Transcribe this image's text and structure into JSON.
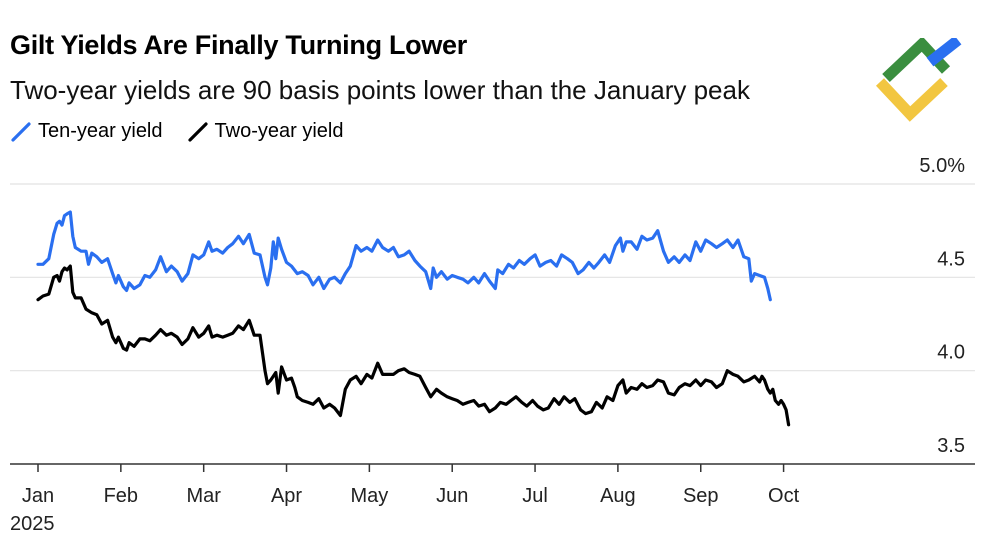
{
  "chart_data": {
    "type": "line",
    "title": "Gilt Yields Are Finally Turning Lower",
    "subtitle": "Two-year yields are 90 basis points lower than the January peak",
    "xlabel": "",
    "ylabel": "",
    "ylim": [
      3.5,
      5.0
    ],
    "grid": true,
    "year_label": "2025",
    "x_ticks": [
      "Jan",
      "Feb",
      "Mar",
      "Apr",
      "May",
      "Jun",
      "Jul",
      "Aug",
      "Sep",
      "Oct"
    ],
    "y_ticks": [
      {
        "value": 5.0,
        "label": "5.0%"
      },
      {
        "value": 4.5,
        "label": "4.5"
      },
      {
        "value": 4.0,
        "label": "4.0"
      },
      {
        "value": 3.5,
        "label": "3.5"
      }
    ],
    "x_domain": [
      0,
      9.85
    ],
    "series": [
      {
        "name": "Ten-year yield",
        "color": "#2a6ff0",
        "points": [
          [
            0.0,
            4.57
          ],
          [
            0.06,
            4.57
          ],
          [
            0.13,
            4.6
          ],
          [
            0.19,
            4.73
          ],
          [
            0.23,
            4.79
          ],
          [
            0.26,
            4.8
          ],
          [
            0.29,
            4.78
          ],
          [
            0.32,
            4.83
          ],
          [
            0.35,
            4.84
          ],
          [
            0.39,
            4.85
          ],
          [
            0.42,
            4.72
          ],
          [
            0.45,
            4.66
          ],
          [
            0.52,
            4.64
          ],
          [
            0.58,
            4.64
          ],
          [
            0.61,
            4.57
          ],
          [
            0.65,
            4.63
          ],
          [
            0.71,
            4.61
          ],
          [
            0.77,
            4.58
          ],
          [
            0.84,
            4.6
          ],
          [
            0.9,
            4.52
          ],
          [
            0.94,
            4.47
          ],
          [
            0.97,
            4.51
          ],
          [
            1.03,
            4.45
          ],
          [
            1.07,
            4.43
          ],
          [
            1.1,
            4.47
          ],
          [
            1.16,
            4.44
          ],
          [
            1.23,
            4.46
          ],
          [
            1.29,
            4.51
          ],
          [
            1.35,
            4.5
          ],
          [
            1.42,
            4.54
          ],
          [
            1.48,
            4.61
          ],
          [
            1.55,
            4.53
          ],
          [
            1.61,
            4.56
          ],
          [
            1.68,
            4.53
          ],
          [
            1.74,
            4.48
          ],
          [
            1.81,
            4.52
          ],
          [
            1.87,
            4.62
          ],
          [
            1.94,
            4.6
          ],
          [
            2.0,
            4.62
          ],
          [
            2.06,
            4.69
          ],
          [
            2.1,
            4.64
          ],
          [
            2.16,
            4.65
          ],
          [
            2.23,
            4.63
          ],
          [
            2.29,
            4.66
          ],
          [
            2.35,
            4.68
          ],
          [
            2.42,
            4.72
          ],
          [
            2.48,
            4.68
          ],
          [
            2.55,
            4.73
          ],
          [
            2.61,
            4.63
          ],
          [
            2.68,
            4.62
          ],
          [
            2.74,
            4.5
          ],
          [
            2.77,
            4.46
          ],
          [
            2.81,
            4.55
          ],
          [
            2.84,
            4.69
          ],
          [
            2.87,
            4.6
          ],
          [
            2.9,
            4.71
          ],
          [
            2.94,
            4.65
          ],
          [
            3.0,
            4.58
          ],
          [
            3.06,
            4.56
          ],
          [
            3.13,
            4.52
          ],
          [
            3.19,
            4.53
          ],
          [
            3.26,
            4.51
          ],
          [
            3.32,
            4.46
          ],
          [
            3.39,
            4.5
          ],
          [
            3.45,
            4.44
          ],
          [
            3.52,
            4.49
          ],
          [
            3.58,
            4.5
          ],
          [
            3.65,
            4.47
          ],
          [
            3.71,
            4.52
          ],
          [
            3.77,
            4.56
          ],
          [
            3.84,
            4.67
          ],
          [
            3.9,
            4.64
          ],
          [
            3.97,
            4.66
          ],
          [
            4.03,
            4.64
          ],
          [
            4.1,
            4.7
          ],
          [
            4.16,
            4.66
          ],
          [
            4.23,
            4.64
          ],
          [
            4.29,
            4.66
          ],
          [
            4.35,
            4.61
          ],
          [
            4.42,
            4.62
          ],
          [
            4.48,
            4.64
          ],
          [
            4.55,
            4.59
          ],
          [
            4.61,
            4.56
          ],
          [
            4.68,
            4.53
          ],
          [
            4.74,
            4.44
          ],
          [
            4.77,
            4.55
          ],
          [
            4.81,
            4.5
          ],
          [
            4.87,
            4.53
          ],
          [
            4.94,
            4.49
          ],
          [
            5.0,
            4.51
          ],
          [
            5.06,
            4.5
          ],
          [
            5.13,
            4.49
          ],
          [
            5.19,
            4.47
          ],
          [
            5.26,
            4.5
          ],
          [
            5.32,
            4.47
          ],
          [
            5.39,
            4.52
          ],
          [
            5.45,
            4.48
          ],
          [
            5.52,
            4.44
          ],
          [
            5.55,
            4.54
          ],
          [
            5.61,
            4.52
          ],
          [
            5.68,
            4.57
          ],
          [
            5.74,
            4.55
          ],
          [
            5.81,
            4.59
          ],
          [
            5.87,
            4.57
          ],
          [
            5.94,
            4.6
          ],
          [
            6.0,
            4.62
          ],
          [
            6.06,
            4.56
          ],
          [
            6.13,
            4.58
          ],
          [
            6.19,
            4.59
          ],
          [
            6.26,
            4.56
          ],
          [
            6.32,
            4.62
          ],
          [
            6.39,
            4.6
          ],
          [
            6.45,
            4.58
          ],
          [
            6.52,
            4.52
          ],
          [
            6.58,
            4.54
          ],
          [
            6.65,
            4.58
          ],
          [
            6.71,
            4.55
          ],
          [
            6.77,
            4.58
          ],
          [
            6.84,
            4.62
          ],
          [
            6.9,
            4.58
          ],
          [
            6.97,
            4.67
          ],
          [
            7.03,
            4.71
          ],
          [
            7.06,
            4.64
          ],
          [
            7.1,
            4.69
          ],
          [
            7.16,
            4.69
          ],
          [
            7.23,
            4.65
          ],
          [
            7.29,
            4.72
          ],
          [
            7.35,
            4.7
          ],
          [
            7.42,
            4.71
          ],
          [
            7.48,
            4.75
          ],
          [
            7.55,
            4.64
          ],
          [
            7.61,
            4.58
          ],
          [
            7.68,
            4.61
          ],
          [
            7.74,
            4.58
          ],
          [
            7.81,
            4.62
          ],
          [
            7.87,
            4.59
          ],
          [
            7.94,
            4.69
          ],
          [
            8.0,
            4.64
          ],
          [
            8.06,
            4.7
          ],
          [
            8.13,
            4.68
          ],
          [
            8.19,
            4.66
          ],
          [
            8.26,
            4.68
          ],
          [
            8.32,
            4.7
          ],
          [
            8.39,
            4.66
          ],
          [
            8.45,
            4.7
          ],
          [
            8.52,
            4.61
          ],
          [
            8.58,
            4.6
          ],
          [
            8.61,
            4.48
          ],
          [
            8.65,
            4.52
          ],
          [
            8.71,
            4.51
          ],
          [
            8.77,
            4.5
          ],
          [
            8.81,
            4.44
          ],
          [
            8.84,
            4.38
          ]
        ]
      },
      {
        "name": "Two-year yield",
        "color": "#000000",
        "points": [
          [
            0.0,
            4.38
          ],
          [
            0.06,
            4.4
          ],
          [
            0.13,
            4.41
          ],
          [
            0.19,
            4.5
          ],
          [
            0.23,
            4.51
          ],
          [
            0.26,
            4.48
          ],
          [
            0.29,
            4.53
          ],
          [
            0.32,
            4.55
          ],
          [
            0.35,
            4.54
          ],
          [
            0.39,
            4.56
          ],
          [
            0.42,
            4.42
          ],
          [
            0.45,
            4.39
          ],
          [
            0.52,
            4.39
          ],
          [
            0.58,
            4.33
          ],
          [
            0.65,
            4.31
          ],
          [
            0.71,
            4.3
          ],
          [
            0.77,
            4.25
          ],
          [
            0.84,
            4.27
          ],
          [
            0.9,
            4.18
          ],
          [
            0.94,
            4.15
          ],
          [
            0.97,
            4.18
          ],
          [
            1.03,
            4.12
          ],
          [
            1.07,
            4.11
          ],
          [
            1.1,
            4.15
          ],
          [
            1.16,
            4.13
          ],
          [
            1.23,
            4.17
          ],
          [
            1.29,
            4.17
          ],
          [
            1.35,
            4.16
          ],
          [
            1.42,
            4.19
          ],
          [
            1.48,
            4.22
          ],
          [
            1.55,
            4.19
          ],
          [
            1.61,
            4.2
          ],
          [
            1.68,
            4.18
          ],
          [
            1.74,
            4.14
          ],
          [
            1.81,
            4.17
          ],
          [
            1.87,
            4.23
          ],
          [
            1.94,
            4.18
          ],
          [
            2.0,
            4.2
          ],
          [
            2.06,
            4.24
          ],
          [
            2.1,
            4.18
          ],
          [
            2.16,
            4.19
          ],
          [
            2.23,
            4.18
          ],
          [
            2.29,
            4.19
          ],
          [
            2.35,
            4.2
          ],
          [
            2.42,
            4.24
          ],
          [
            2.48,
            4.22
          ],
          [
            2.55,
            4.27
          ],
          [
            2.61,
            4.19
          ],
          [
            2.68,
            4.19
          ],
          [
            2.74,
            4.0
          ],
          [
            2.77,
            3.93
          ],
          [
            2.81,
            3.95
          ],
          [
            2.87,
            3.99
          ],
          [
            2.9,
            3.88
          ],
          [
            2.94,
            4.02
          ],
          [
            3.0,
            3.95
          ],
          [
            3.06,
            3.96
          ],
          [
            3.1,
            3.91
          ],
          [
            3.13,
            3.86
          ],
          [
            3.19,
            3.84
          ],
          [
            3.26,
            3.83
          ],
          [
            3.32,
            3.82
          ],
          [
            3.39,
            3.85
          ],
          [
            3.45,
            3.8
          ],
          [
            3.52,
            3.82
          ],
          [
            3.58,
            3.8
          ],
          [
            3.65,
            3.76
          ],
          [
            3.71,
            3.9
          ],
          [
            3.77,
            3.95
          ],
          [
            3.84,
            3.97
          ],
          [
            3.9,
            3.93
          ],
          [
            3.97,
            3.98
          ],
          [
            4.03,
            3.96
          ],
          [
            4.1,
            4.04
          ],
          [
            4.16,
            3.98
          ],
          [
            4.23,
            3.98
          ],
          [
            4.29,
            3.98
          ],
          [
            4.35,
            4.0
          ],
          [
            4.42,
            4.01
          ],
          [
            4.48,
            3.99
          ],
          [
            4.55,
            3.98
          ],
          [
            4.61,
            3.97
          ],
          [
            4.68,
            3.91
          ],
          [
            4.74,
            3.86
          ],
          [
            4.81,
            3.9
          ],
          [
            4.87,
            3.88
          ],
          [
            4.94,
            3.86
          ],
          [
            5.0,
            3.85
          ],
          [
            5.06,
            3.84
          ],
          [
            5.13,
            3.82
          ],
          [
            5.19,
            3.83
          ],
          [
            5.26,
            3.84
          ],
          [
            5.32,
            3.81
          ],
          [
            5.39,
            3.82
          ],
          [
            5.45,
            3.78
          ],
          [
            5.52,
            3.8
          ],
          [
            5.58,
            3.83
          ],
          [
            5.65,
            3.82
          ],
          [
            5.71,
            3.84
          ],
          [
            5.77,
            3.86
          ],
          [
            5.84,
            3.83
          ],
          [
            5.9,
            3.81
          ],
          [
            5.97,
            3.84
          ],
          [
            6.03,
            3.81
          ],
          [
            6.1,
            3.79
          ],
          [
            6.16,
            3.8
          ],
          [
            6.23,
            3.85
          ],
          [
            6.29,
            3.82
          ],
          [
            6.35,
            3.86
          ],
          [
            6.42,
            3.83
          ],
          [
            6.48,
            3.85
          ],
          [
            6.55,
            3.79
          ],
          [
            6.61,
            3.77
          ],
          [
            6.68,
            3.78
          ],
          [
            6.74,
            3.83
          ],
          [
            6.81,
            3.8
          ],
          [
            6.87,
            3.86
          ],
          [
            6.94,
            3.84
          ],
          [
            7.0,
            3.92
          ],
          [
            7.06,
            3.95
          ],
          [
            7.1,
            3.88
          ],
          [
            7.16,
            3.91
          ],
          [
            7.23,
            3.9
          ],
          [
            7.29,
            3.93
          ],
          [
            7.35,
            3.91
          ],
          [
            7.42,
            3.92
          ],
          [
            7.48,
            3.95
          ],
          [
            7.55,
            3.94
          ],
          [
            7.61,
            3.88
          ],
          [
            7.68,
            3.87
          ],
          [
            7.74,
            3.91
          ],
          [
            7.81,
            3.93
          ],
          [
            7.87,
            3.92
          ],
          [
            7.94,
            3.95
          ],
          [
            8.0,
            3.92
          ],
          [
            8.06,
            3.95
          ],
          [
            8.13,
            3.94
          ],
          [
            8.19,
            3.91
          ],
          [
            8.26,
            3.93
          ],
          [
            8.32,
            4.0
          ],
          [
            8.39,
            3.98
          ],
          [
            8.45,
            3.97
          ],
          [
            8.52,
            3.94
          ],
          [
            8.58,
            3.95
          ],
          [
            8.65,
            3.97
          ],
          [
            8.71,
            3.94
          ],
          [
            8.74,
            3.97
          ],
          [
            8.77,
            3.95
          ],
          [
            8.81,
            3.9
          ],
          [
            8.84,
            3.88
          ],
          [
            8.87,
            3.9
          ],
          [
            8.9,
            3.84
          ],
          [
            8.94,
            3.82
          ],
          [
            8.97,
            3.84
          ],
          [
            9.0,
            3.82
          ],
          [
            9.03,
            3.79
          ],
          [
            9.06,
            3.71
          ]
        ]
      }
    ],
    "legend": [
      {
        "label": "Ten-year yield",
        "color": "#2a6ff0"
      },
      {
        "label": "Two-year yield",
        "color": "#000000"
      }
    ]
  },
  "logo": {
    "colors": {
      "green": "#3a8e3f",
      "blue": "#2a6ff0",
      "yellow": "#f2c640"
    }
  }
}
